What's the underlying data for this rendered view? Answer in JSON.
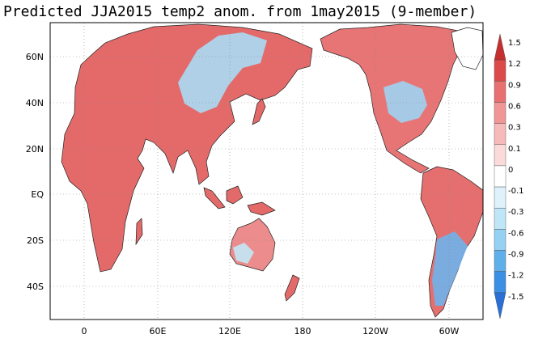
{
  "title": "Predicted JJA2015 temp2 anom. from 1may2015 (9-member)",
  "map": {
    "projection": "cylindrical-equidistant",
    "lon_ticks": [
      "0",
      "60E",
      "120E",
      "180",
      "120W",
      "60W"
    ],
    "lat_ticks": [
      "60N",
      "40N",
      "20N",
      "EQ",
      "20S",
      "40S"
    ],
    "grid": "dotted",
    "features": [
      {
        "name": "eurasia-africa",
        "color": "#e46a6a"
      },
      {
        "name": "north-america",
        "color": "#e87575"
      },
      {
        "name": "south-america",
        "color": "#e56f6f"
      },
      {
        "name": "australia",
        "color": "#ec8c8c"
      },
      {
        "name": "central-asia-cool-anomaly",
        "color": "#a9dcf5"
      },
      {
        "name": "us-midwest-cool-anomaly",
        "color": "#9fd3f2"
      },
      {
        "name": "southern-south-america-cool-anomaly",
        "color": "#6fb3ec"
      },
      {
        "name": "western-australia-cool-anomaly",
        "color": "#c3e8f6"
      }
    ]
  },
  "colorbar": {
    "labels": [
      "1.5",
      "1.2",
      "0.9",
      "0.6",
      "0.3",
      "0.1",
      "0",
      "-0.1",
      "-0.3",
      "-0.6",
      "-0.9",
      "-1.2",
      "-1.5"
    ],
    "colors": [
      "#c62f2f",
      "#dc4a4a",
      "#e87070",
      "#f09696",
      "#f6baba",
      "#fbdada",
      "#ffffff",
      "#dff2fb",
      "#bfe6f7",
      "#94d1f2",
      "#5fb0ea",
      "#3b8fe4",
      "#2a6fd6"
    ]
  }
}
